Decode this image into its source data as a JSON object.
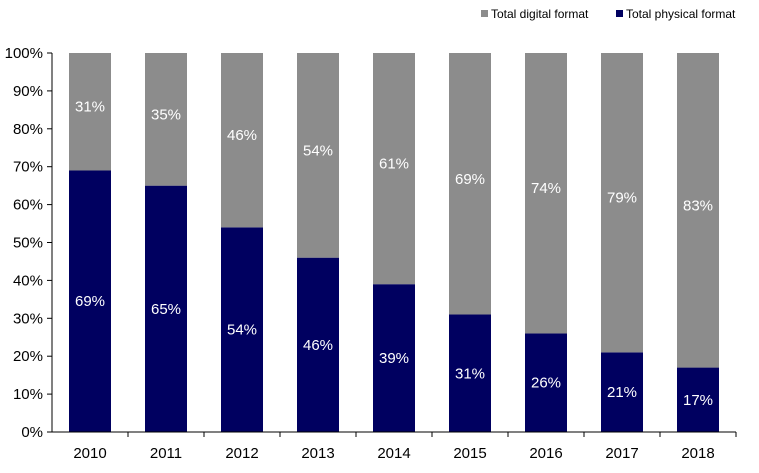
{
  "chart_data": {
    "type": "bar",
    "stacked": true,
    "percent": true,
    "categories": [
      "2010",
      "2011",
      "2012",
      "2013",
      "2014",
      "2015",
      "2016",
      "2017",
      "2018"
    ],
    "series": [
      {
        "name": "Total physical format",
        "color": "#000060",
        "values": [
          69,
          65,
          54,
          46,
          39,
          31,
          26,
          21,
          17
        ],
        "labels": [
          "69%",
          "65%",
          "54%",
          "46%",
          "39%",
          "31%",
          "26%",
          "21%",
          "17%"
        ]
      },
      {
        "name": "Total digital format",
        "color": "#8c8c8c",
        "values": [
          31,
          35,
          46,
          54,
          61,
          69,
          74,
          79,
          83
        ],
        "labels": [
          "31%",
          "35%",
          "46%",
          "54%",
          "61%",
          "69%",
          "74%",
          "79%",
          "83%"
        ]
      }
    ],
    "ylim": [
      0,
      100
    ],
    "yticks": [
      "0%",
      "10%",
      "20%",
      "30%",
      "40%",
      "50%",
      "60%",
      "70%",
      "80%",
      "90%",
      "100%"
    ],
    "legend": {
      "placement": "top-right",
      "order": [
        "Total digital format",
        "Total physical format"
      ]
    },
    "grid": false,
    "title": "",
    "xlabel": "",
    "ylabel": ""
  }
}
